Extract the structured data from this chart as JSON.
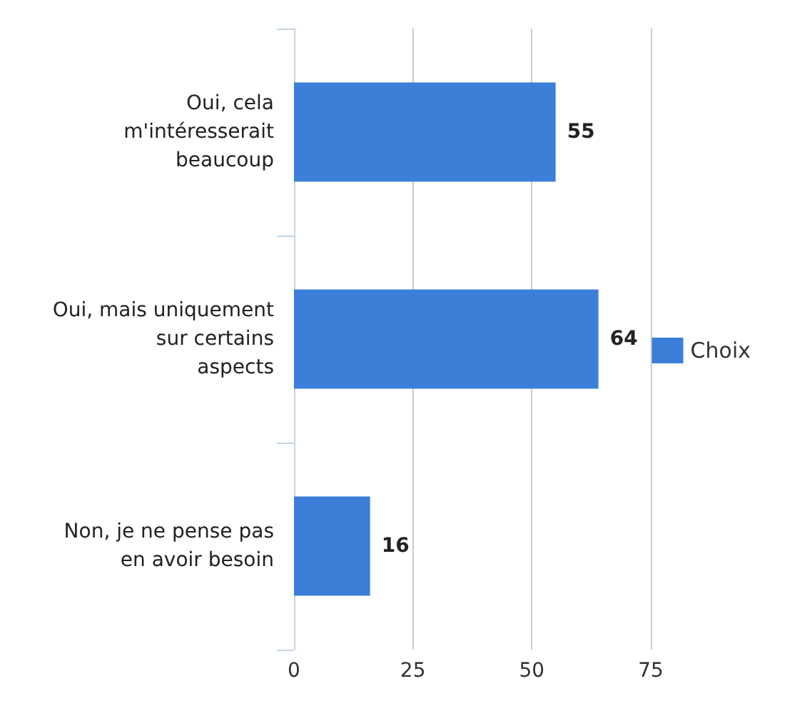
{
  "chart_data": {
    "type": "bar",
    "orientation": "horizontal",
    "categories": [
      "Oui, cela\nm'intéresserait\nbeaucoup",
      "Oui, mais uniquement\nsur certains\naspects",
      "Non, je ne pense pas\nen avoir besoin"
    ],
    "series": [
      {
        "name": "Choix",
        "color": "#3b7fd9",
        "values": [
          55,
          64,
          16
        ]
      }
    ],
    "xlim": [
      0,
      75
    ],
    "xticks": [
      0,
      25,
      50,
      75
    ],
    "grid": "x",
    "legend": "right",
    "data_labels": true
  }
}
